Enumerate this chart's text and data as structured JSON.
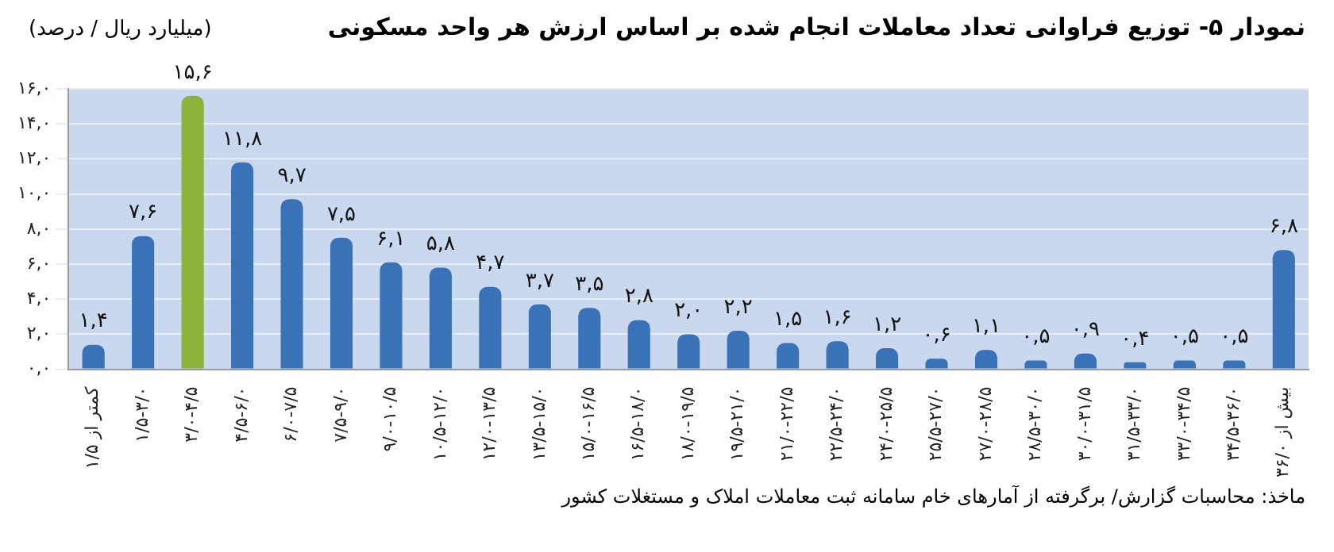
{
  "chart_data": {
    "type": "bar",
    "title": "نمودار ۵- توزیع فراوانی تعداد معاملات انجام شده بر اساس ارزش هر واحد مسکونی",
    "ylabel": "(میلیارد ریال / درصد)",
    "categories": [
      "کمتر از ۱/۵",
      "۱/۵-۳/۰",
      "۳/۰-۴/۵",
      "۴/۵-۶/۰",
      "۶/۰-۷/۵",
      "۷/۵-۹/۰",
      "۹/۰-۱۰/۵",
      "۱۰/۵-۱۲/۰",
      "۱۲/۰-۱۳/۵",
      "۱۳/۵-۱۵/۰",
      "۱۵/۰-۱۶/۵",
      "۱۶/۵-۱۸/۰",
      "۱۸/۰-۱۹/۵",
      "۱۹/۵-۲۱/۰",
      "۲۱/۰-۲۲/۵",
      "۲۲/۵-۲۴/۰",
      "۲۴/۰-۲۵/۵",
      "۲۵/۵-۲۷/۰",
      "۲۷/۰-۲۸/۵",
      "۲۸/۵-۳۰/۰",
      "۳۰/۰-۳۱/۵",
      "۳۱/۵-۳۳/۰",
      "۳۳/۰-۳۴/۵",
      "۳۴/۵-۳۶/۰",
      "بیش از ۳۶/۰"
    ],
    "values": [
      1.4,
      7.6,
      15.6,
      11.8,
      9.7,
      7.5,
      6.1,
      5.8,
      4.7,
      3.7,
      3.5,
      2.8,
      2.0,
      2.2,
      1.5,
      1.6,
      1.2,
      0.6,
      1.1,
      0.5,
      0.9,
      0.4,
      0.5,
      0.5,
      6.8
    ],
    "value_labels": [
      "۱,۴",
      "۷,۶",
      "۱۵,۶",
      "۱۱,۸",
      "۹,۷",
      "۷,۵",
      "۶,۱",
      "۵,۸",
      "۴,۷",
      "۳,۷",
      "۳,۵",
      "۲,۸",
      "۲,۰",
      "۲,۲",
      "۱,۵",
      "۱,۶",
      "۱,۲",
      "۰,۶",
      "۱,۱",
      "۰,۵",
      "۰,۹",
      "۰,۴",
      "۰,۵",
      "۰,۵",
      "۶,۸"
    ],
    "colors": [
      "#3a72b8",
      "#3a72b8",
      "#8db33a",
      "#3a72b8",
      "#3a72b8",
      "#3a72b8",
      "#3a72b8",
      "#3a72b8",
      "#3a72b8",
      "#3a72b8",
      "#3a72b8",
      "#3a72b8",
      "#3a72b8",
      "#3a72b8",
      "#3a72b8",
      "#3a72b8",
      "#3a72b8",
      "#3a72b8",
      "#3a72b8",
      "#3a72b8",
      "#3a72b8",
      "#3a72b8",
      "#3a72b8",
      "#3a72b8",
      "#3a72b8"
    ],
    "ylim": [
      0,
      16
    ],
    "yticks": [
      {
        "value": 0,
        "label": "۰,۰"
      },
      {
        "value": 2,
        "label": "۲,۰"
      },
      {
        "value": 4,
        "label": "۴,۰"
      },
      {
        "value": 6,
        "label": "۶,۰"
      },
      {
        "value": 8,
        "label": "۸,۰"
      },
      {
        "value": 10,
        "label": "۱۰,۰"
      },
      {
        "value": 12,
        "label": "۱۲,۰"
      },
      {
        "value": 14,
        "label": "۱۴,۰"
      },
      {
        "value": 16,
        "label": "۱۶,۰"
      }
    ],
    "grid": "y",
    "annotations": [
      "ماخذ: محاسبات گزارش/ برگرفته از آمارهای خام سامانه ثبت معاملات املاک و مستغلات کشور"
    ]
  }
}
